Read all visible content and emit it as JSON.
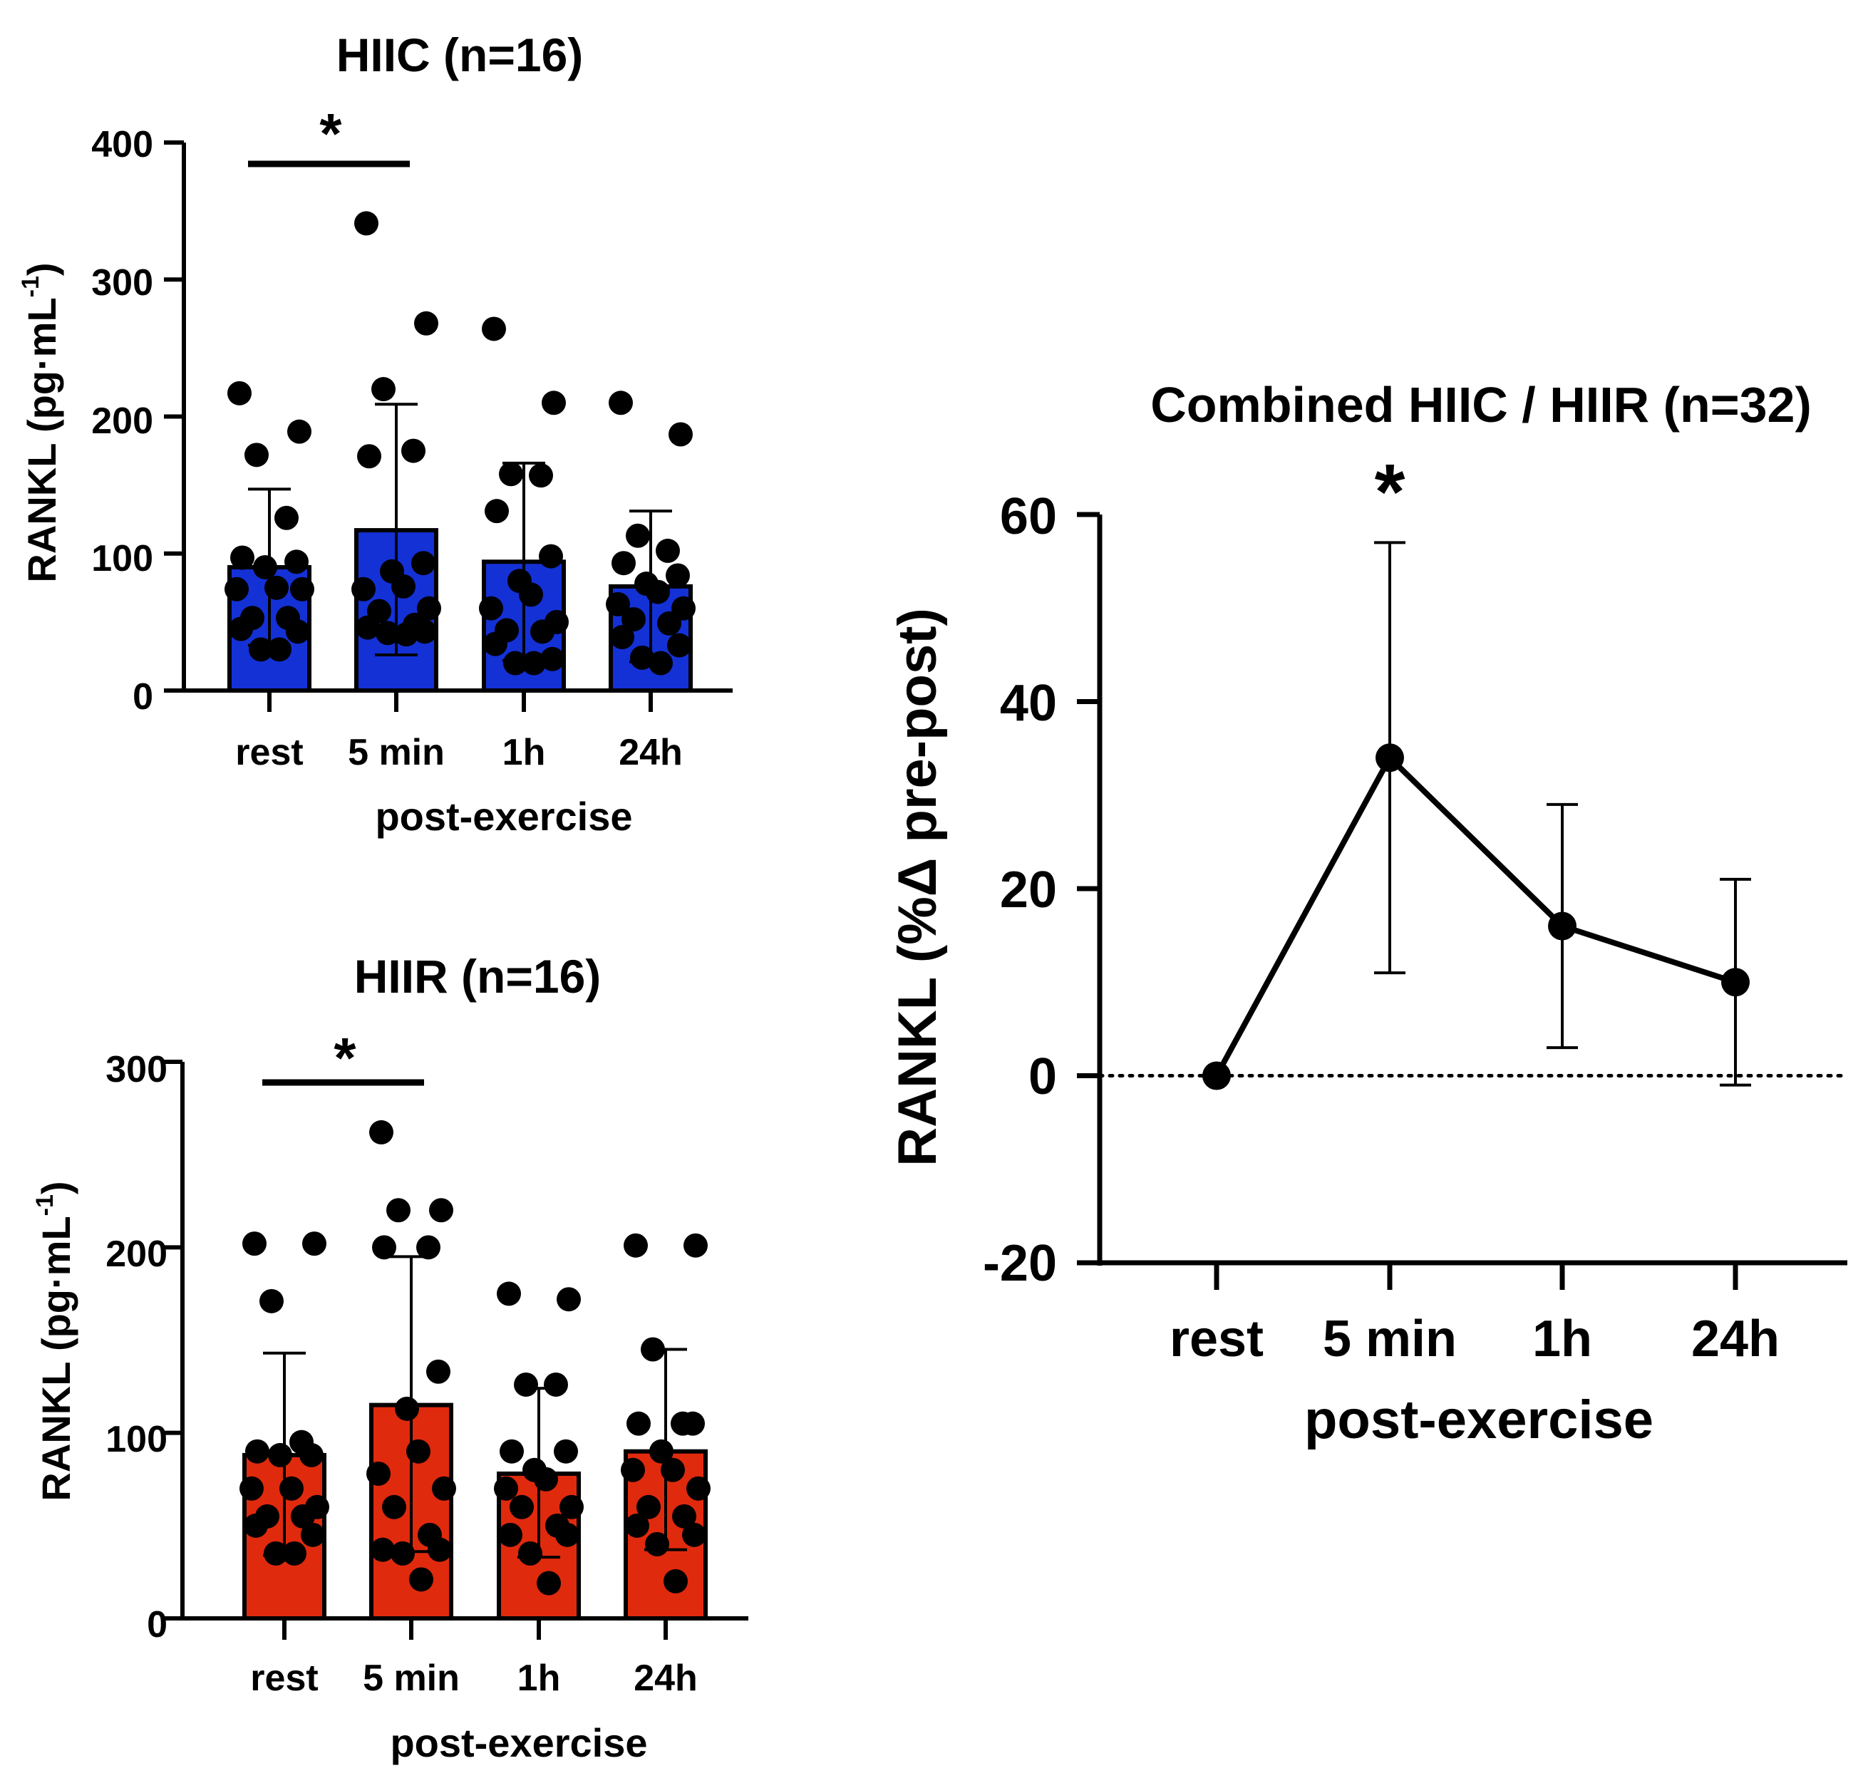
{
  "chart_data": [
    {
      "id": "hiic",
      "type": "bar",
      "title": "HIIC (n=16)",
      "xlabel": "post-exercise",
      "ylabel": "RANKL (pg·mL",
      "ylabel_superscript": "-1",
      "ylabel_close": ")",
      "ylim": [
        0,
        400
      ],
      "yticks": [
        0,
        100,
        200,
        300,
        400
      ],
      "categories": [
        "rest",
        "5 min",
        "1h",
        "24h"
      ],
      "bar_color": "#1431d6",
      "values": [
        90,
        117,
        94,
        76
      ],
      "error_upper": [
        147,
        209,
        166,
        131
      ],
      "error_lower": [
        33,
        26,
        22,
        21
      ],
      "points": [
        [
          217,
          189,
          172,
          126,
          97,
          94,
          90,
          75,
          74,
          74,
          53,
          53,
          45,
          43,
          30,
          30
        ],
        [
          341,
          268,
          220,
          175,
          171,
          93,
          87,
          76,
          74,
          60,
          58,
          48,
          46,
          43,
          42,
          41
        ],
        [
          264,
          210,
          158,
          157,
          131,
          98,
          80,
          70,
          60,
          50,
          44,
          43,
          34,
          23,
          20,
          20
        ],
        [
          210,
          187,
          113,
          102,
          93,
          84,
          78,
          72,
          63,
          60,
          52,
          49,
          39,
          33,
          24,
          20
        ]
      ],
      "significance": {
        "from": "rest",
        "to": "5 min",
        "label": "*"
      }
    },
    {
      "id": "hiir",
      "type": "bar",
      "title": "HIIR (n=16)",
      "xlabel": "post-exercise",
      "ylabel": "RANKL (pg·mL",
      "ylabel_superscript": "-1",
      "ylabel_close": ")",
      "ylim": [
        0,
        300
      ],
      "yticks": [
        0,
        100,
        200,
        300
      ],
      "categories": [
        "rest",
        "5 min",
        "1h",
        "24h"
      ],
      "bar_color": "#e02a0d",
      "values": [
        88,
        115,
        78,
        90
      ],
      "error_upper": [
        143,
        195,
        124,
        145
      ],
      "error_lower": [
        34,
        36,
        33,
        37
      ],
      "points": [
        [
          202,
          202,
          171,
          95,
          90,
          88,
          88,
          70,
          70,
          60,
          55,
          55,
          50,
          45,
          35,
          35
        ],
        [
          262,
          220,
          220,
          200,
          200,
          133,
          113,
          90,
          78,
          70,
          60,
          45,
          37,
          37,
          35,
          21
        ],
        [
          175,
          172,
          126,
          126,
          90,
          90,
          80,
          75,
          70,
          60,
          60,
          50,
          45,
          45,
          35,
          19
        ],
        [
          201,
          201,
          145,
          105,
          105,
          105,
          90,
          80,
          80,
          70,
          60,
          55,
          50,
          45,
          40,
          20
        ]
      ],
      "significance": {
        "from": "rest",
        "to": "5 min",
        "label": "*"
      }
    },
    {
      "id": "combined",
      "type": "line",
      "title": "Combined HIIC / HIIR (n=32)",
      "xlabel": "post-exercise",
      "ylabel": "RANKL (%Δ pre-post)",
      "ylim": [
        -20,
        60
      ],
      "yticks": [
        -20,
        0,
        20,
        40,
        60
      ],
      "categories": [
        "rest",
        "5 min",
        "1h",
        "24h"
      ],
      "values": [
        0,
        34,
        16,
        10
      ],
      "error_upper": [
        0,
        57,
        29,
        21
      ],
      "error_lower": [
        0,
        11,
        3,
        -1
      ],
      "reference_line": 0,
      "significance": {
        "at": "5 min",
        "label": "*"
      }
    }
  ]
}
